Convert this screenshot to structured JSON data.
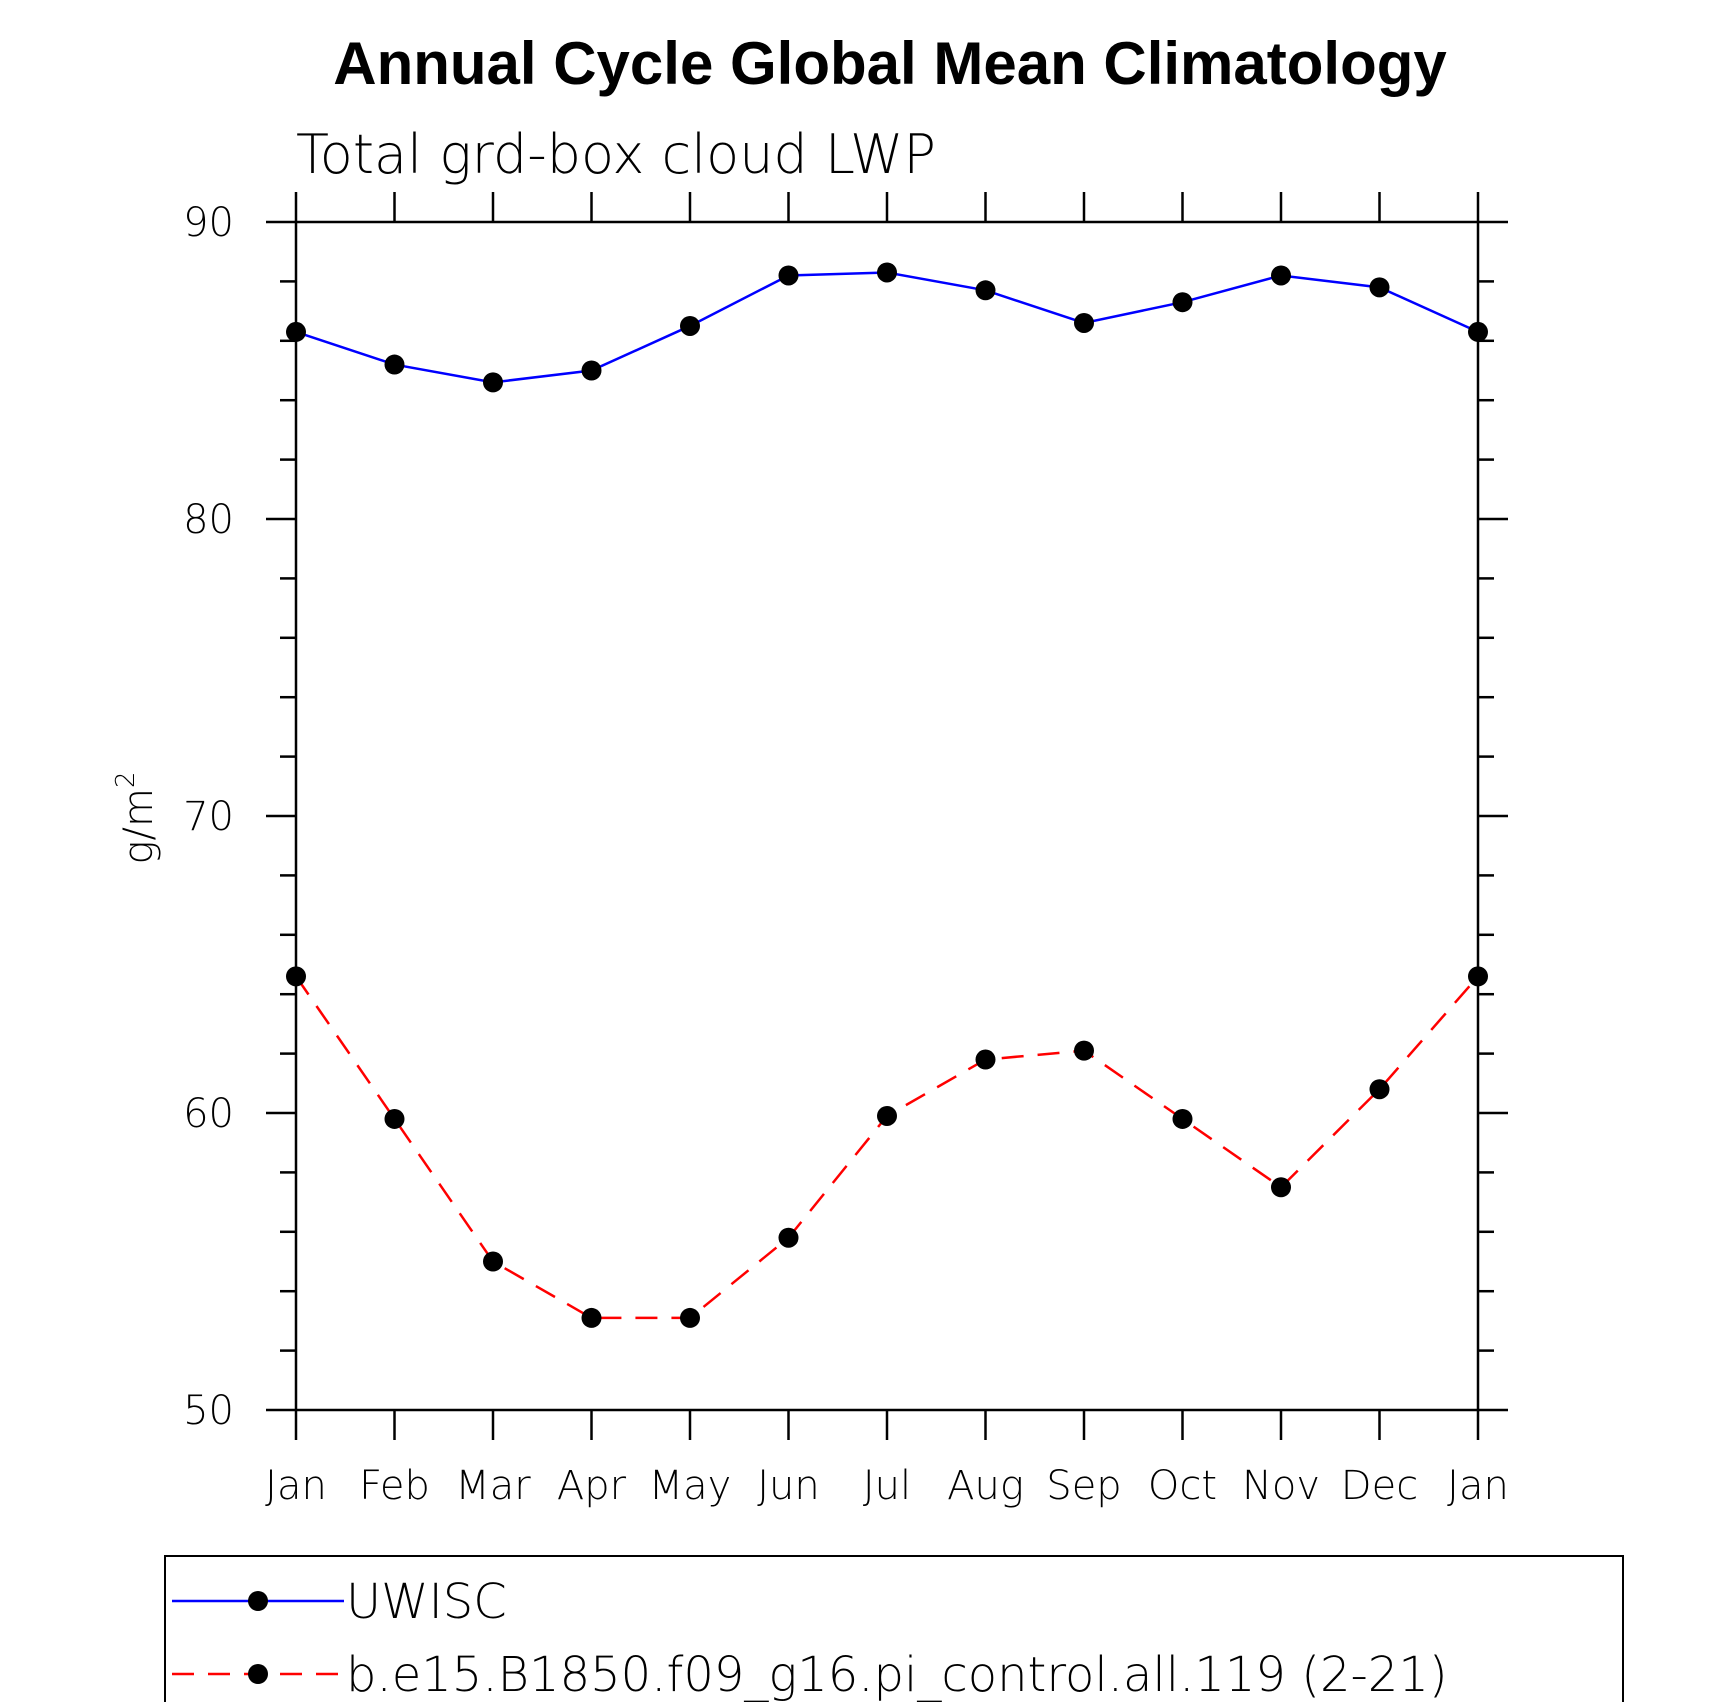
{
  "chart_data": {
    "type": "line",
    "title": "Annual Cycle Global Mean Climatology",
    "subtitle": "Total grd-box cloud LWP",
    "ylabel": "g/m",
    "ylabel_superscript": "2",
    "xlabel": "",
    "categories": [
      "Jan",
      "Feb",
      "Mar",
      "Apr",
      "May",
      "Jun",
      "Jul",
      "Aug",
      "Sep",
      "Oct",
      "Nov",
      "Dec",
      "Jan"
    ],
    "ylim": [
      50,
      90
    ],
    "yticks": [
      50,
      60,
      70,
      80,
      90
    ],
    "y_minor_step": 2,
    "grid": false,
    "legend_position": "bottom",
    "series": [
      {
        "name": "UWISC",
        "color": "#0000ff",
        "dash": "solid",
        "marker": "filled-circle",
        "values": [
          86.3,
          85.2,
          84.6,
          85.0,
          86.5,
          88.2,
          88.3,
          87.7,
          86.6,
          87.3,
          88.2,
          87.8,
          86.3
        ]
      },
      {
        "name": "b.e15.B1850.f09_g16.pi_control.all.119 (2-21)",
        "color": "#ff0000",
        "dash": "dashed",
        "marker": "filled-circle",
        "values": [
          64.6,
          59.8,
          55.0,
          53.1,
          53.1,
          55.8,
          59.9,
          61.8,
          62.1,
          59.8,
          57.5,
          60.8,
          64.6
        ]
      }
    ]
  }
}
